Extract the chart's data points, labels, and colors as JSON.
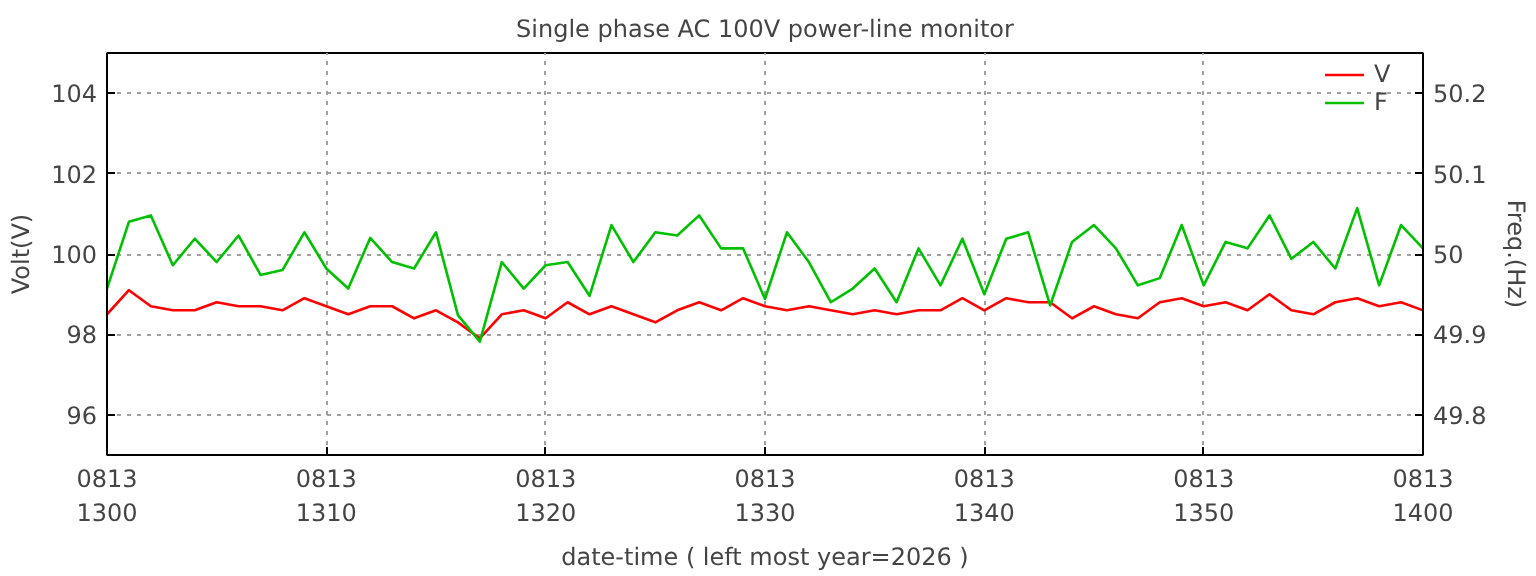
{
  "chart_data": {
    "type": "line",
    "title": "Single phase AC 100V power-line monitor",
    "xlabel": "date-time ( left most year=2026 )",
    "ylabel": "Volt(V)",
    "y2label": "Freq.(Hz)",
    "xlim": [
      "2026-08-13T13:00",
      "2026-08-13T14:00"
    ],
    "xticks": [
      {
        "value": "2026-08-13T13:00",
        "label": "0813\n1300"
      },
      {
        "value": "2026-08-13T13:10",
        "label": "0813\n1310"
      },
      {
        "value": "2026-08-13T13:20",
        "label": "0813\n1320"
      },
      {
        "value": "2026-08-13T13:30",
        "label": "0813\n1330"
      },
      {
        "value": "2026-08-13T13:40",
        "label": "0813\n1340"
      },
      {
        "value": "2026-08-13T13:50",
        "label": "0813\n1350"
      },
      {
        "value": "2026-08-13T14:00",
        "label": "0813\n1400"
      }
    ],
    "ylim": [
      95,
      105
    ],
    "yticks": [
      96,
      98,
      100,
      102,
      104
    ],
    "y2lim": [
      49.75,
      50.25
    ],
    "y2ticks": [
      49.8,
      49.9,
      {
        "value": 50.0,
        "label": "50"
      },
      50.1,
      50.2
    ],
    "grid": true,
    "legend": "top right",
    "line_style": "solid",
    "marker": "none",
    "x": [
      "2026-08-13T13:00",
      "2026-08-13T13:01",
      "2026-08-13T13:02",
      "2026-08-13T13:03",
      "2026-08-13T13:04",
      "2026-08-13T13:05",
      "2026-08-13T13:06",
      "2026-08-13T13:07",
      "2026-08-13T13:08",
      "2026-08-13T13:09",
      "2026-08-13T13:10",
      "2026-08-13T13:11",
      "2026-08-13T13:12",
      "2026-08-13T13:13",
      "2026-08-13T13:14",
      "2026-08-13T13:15",
      "2026-08-13T13:16",
      "2026-08-13T13:17",
      "2026-08-13T13:18",
      "2026-08-13T13:19",
      "2026-08-13T13:20",
      "2026-08-13T13:21",
      "2026-08-13T13:22",
      "2026-08-13T13:23",
      "2026-08-13T13:24",
      "2026-08-13T13:25",
      "2026-08-13T13:26",
      "2026-08-13T13:27",
      "2026-08-13T13:28",
      "2026-08-13T13:29",
      "2026-08-13T13:30",
      "2026-08-13T13:31",
      "2026-08-13T13:32",
      "2026-08-13T13:33",
      "2026-08-13T13:34",
      "2026-08-13T13:35",
      "2026-08-13T13:36",
      "2026-08-13T13:37",
      "2026-08-13T13:38",
      "2026-08-13T13:39",
      "2026-08-13T13:40",
      "2026-08-13T13:41",
      "2026-08-13T13:42",
      "2026-08-13T13:43",
      "2026-08-13T13:44",
      "2026-08-13T13:45",
      "2026-08-13T13:46",
      "2026-08-13T13:47",
      "2026-08-13T13:48",
      "2026-08-13T13:49",
      "2026-08-13T13:50",
      "2026-08-13T13:51",
      "2026-08-13T13:52",
      "2026-08-13T13:53",
      "2026-08-13T13:54",
      "2026-08-13T13:55",
      "2026-08-13T13:56",
      "2026-08-13T13:57",
      "2026-08-13T13:58",
      "2026-08-13T13:59",
      "2026-08-13T14:00"
    ],
    "series": [
      {
        "name": "V",
        "color": "#ff0000",
        "values": [
          98.5,
          99.1,
          98.7,
          98.6,
          98.6,
          98.8,
          98.7,
          98.7,
          98.6,
          98.9,
          98.7,
          98.5,
          98.7,
          98.7,
          98.4,
          98.6,
          98.3,
          97.9,
          98.5,
          98.6,
          98.4,
          98.8,
          98.5,
          98.7,
          98.5,
          98.3,
          98.6,
          98.8,
          98.6,
          98.9,
          98.7,
          98.6,
          98.7,
          98.6,
          98.5,
          98.6,
          98.5,
          98.6,
          98.6,
          98.9,
          98.6,
          98.9,
          98.8,
          98.8,
          98.4,
          98.7,
          98.5,
          98.4,
          98.8,
          98.9,
          98.7,
          98.8,
          98.6,
          99.0,
          98.6,
          98.5,
          98.8,
          98.9,
          98.7,
          98.8,
          98.6
        ]
      },
      {
        "name": "F",
        "color": "#00c000",
        "axis": "y2",
        "values": [
          49.957,
          50.04,
          50.048,
          49.986,
          50.019,
          49.99,
          50.023,
          49.974,
          49.98,
          50.027,
          49.982,
          49.957,
          50.02,
          49.99,
          49.982,
          50.027,
          49.924,
          49.891,
          49.99,
          49.957,
          49.986,
          49.99,
          49.948,
          50.036,
          49.99,
          50.027,
          50.023,
          50.048,
          50.007,
          50.007,
          49.944,
          50.027,
          49.99,
          49.94,
          49.957,
          49.982,
          49.94,
          50.007,
          49.961,
          50.019,
          49.95,
          50.019,
          50.027,
          49.936,
          50.015,
          50.036,
          50.007,
          49.961,
          49.97,
          50.036,
          49.961,
          50.015,
          50.007,
          50.048,
          49.994,
          50.015,
          49.982,
          50.057,
          49.961,
          50.036,
          50.007
        ]
      }
    ]
  }
}
